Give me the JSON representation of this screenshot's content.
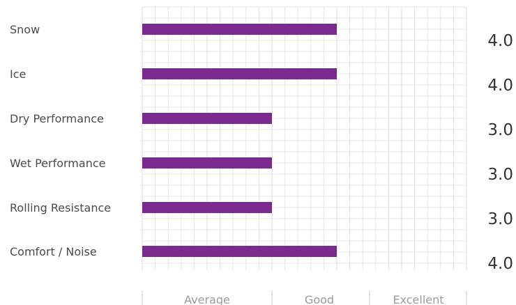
{
  "chart_data": {
    "type": "bar",
    "orientation": "horizontal",
    "categories": [
      "Snow",
      "Ice",
      "Dry Performance",
      "Wet Performance",
      "Rolling Resistance",
      "Comfort / Noise"
    ],
    "values": [
      4.0,
      4.0,
      3.0,
      3.0,
      3.0,
      4.0
    ],
    "value_labels": [
      "4.0",
      "4.0",
      "3.0",
      "3.0",
      "3.0",
      "4.0"
    ],
    "xlim": [
      1,
      6
    ],
    "x_tick_labels": [
      "Average",
      "Good",
      "Excellent"
    ],
    "grid": true,
    "bar_color": "#7b2a8d",
    "grid_color": "#e6e6e6"
  }
}
